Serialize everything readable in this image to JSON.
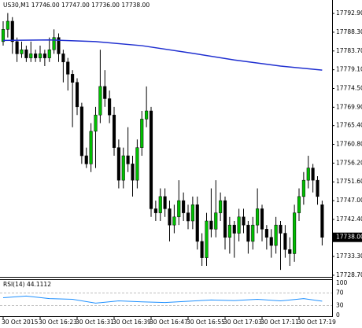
{
  "chart_data": [
    {
      "type": "candlestick",
      "title": "US30,M1 17746.00 17747.00 17736.00 17738.00",
      "price_label": "17738.00",
      "categories": [
        "30 Oct 2015",
        null,
        null,
        null,
        null,
        null,
        null,
        null,
        "30 Oct 16:23",
        null,
        null,
        null,
        null,
        null,
        null,
        null,
        "30 Oct 16:31",
        null,
        null,
        null,
        null,
        null,
        null,
        null,
        "30 Oct 16:39",
        null,
        null,
        null,
        null,
        null,
        null,
        null,
        "30 Oct 16:47",
        null,
        null,
        null,
        null,
        null,
        null,
        null,
        "30 Oct 16:55",
        null,
        null,
        null,
        null,
        null,
        null,
        null,
        "30 Oct 17:03",
        null,
        null,
        null,
        null,
        null,
        null,
        null,
        "30 Oct 17:11",
        null,
        null,
        null,
        null,
        null,
        null,
        null,
        "30 Oct 17:19",
        null,
        null,
        null,
        null,
        null
      ],
      "open": [
        17786,
        17789,
        17791,
        17786,
        17783,
        17784,
        17782,
        17783,
        17782,
        17783,
        17782,
        17784,
        17787,
        17783,
        17781,
        17778,
        17776,
        17770,
        17758,
        17756,
        17764,
        17768,
        17775,
        17772,
        17768,
        17760,
        17752,
        17758,
        17756,
        17752,
        17760,
        17767,
        17769,
        17745,
        17744,
        17748,
        17745,
        17741,
        17743,
        17747,
        17744,
        17742,
        17746,
        17737,
        17733,
        17742,
        17740,
        17744,
        17747,
        17738,
        17741,
        17739,
        17743,
        17741,
        17737,
        17741,
        17745,
        17740,
        17738,
        17736,
        17741,
        17739,
        17735,
        17734,
        17744,
        17748,
        17752,
        17755,
        17752,
        17746
      ],
      "high": [
        17791,
        17793,
        17792,
        17787,
        17786,
        17785,
        17786,
        17784,
        17785,
        17784,
        17787,
        17789,
        17788,
        17784,
        17782,
        17779,
        17777,
        17771,
        17760,
        17766,
        17770,
        17784,
        17779,
        17774,
        17770,
        17762,
        17760,
        17765,
        17758,
        17762,
        17769,
        17775,
        17770,
        17747,
        17750,
        17750,
        17747,
        17746,
        17752,
        17749,
        17746,
        17748,
        17748,
        17739,
        17744,
        17750,
        17752,
        17749,
        17748,
        17743,
        17742,
        17745,
        17745,
        17742,
        17743,
        17750,
        17746,
        17741,
        17740,
        17743,
        17742,
        17741,
        17738,
        17746,
        17750,
        17754,
        17758,
        17756,
        17753,
        17747
      ],
      "low": [
        17785,
        17787,
        17783,
        17781,
        17782,
        17781,
        17781,
        17781,
        17781,
        17780,
        17781,
        17783,
        17781,
        17776,
        17774,
        17765,
        17768,
        17756,
        17755,
        17754,
        17755,
        17766,
        17770,
        17766,
        17758,
        17750,
        17750,
        17754,
        17748,
        17750,
        17758,
        17765,
        17743,
        17742,
        17742,
        17743,
        17737,
        17739,
        17741,
        17742,
        17740,
        17740,
        17735,
        17731,
        17731,
        17738,
        17738,
        17742,
        17735,
        17734,
        17733,
        17737,
        17739,
        17734,
        17735,
        17739,
        17737,
        17735,
        17733,
        17734,
        17730,
        17733,
        17731,
        17732,
        17742,
        17746,
        17750,
        17749,
        17746,
        17736
      ],
      "close": [
        17789,
        17791,
        17786,
        17783,
        17784,
        17782,
        17783,
        17782,
        17783,
        17782,
        17784,
        17787,
        17783,
        17781,
        17778,
        17776,
        17770,
        17758,
        17756,
        17764,
        17768,
        17775,
        17772,
        17768,
        17760,
        17752,
        17758,
        17756,
        17752,
        17760,
        17767,
        17769,
        17745,
        17744,
        17748,
        17745,
        17741,
        17743,
        17747,
        17744,
        17742,
        17746,
        17737,
        17733,
        17742,
        17740,
        17744,
        17747,
        17738,
        17741,
        17739,
        17743,
        17741,
        17737,
        17741,
        17745,
        17740,
        17738,
        17736,
        17741,
        17739,
        17735,
        17734,
        17744,
        17748,
        17752,
        17755,
        17752,
        17748,
        17738
      ],
      "up_color": "#00c000",
      "down_color": "#000000",
      "ma": {
        "color": "#1f2fd0",
        "x": [
          0,
          10,
          20,
          30,
          40,
          50,
          60,
          69
        ],
        "values": [
          17786.3,
          17786.4,
          17786.0,
          17785.0,
          17783.3,
          17781.5,
          17780.0,
          17779.0
        ]
      },
      "ylim": [
        17728.3,
        17796.2
      ],
      "yticks": [
        {
          "value": 17792.9,
          "label": "17792.90"
        },
        {
          "value": 17788.3,
          "label": "17788.30"
        },
        {
          "value": 17783.7,
          "label": "17783.70"
        },
        {
          "value": 17779.1,
          "label": "17779.10"
        },
        {
          "value": 17774.5,
          "label": "17774.50"
        },
        {
          "value": 17769.9,
          "label": "17769.90"
        },
        {
          "value": 17765.4,
          "label": "17765.40"
        },
        {
          "value": 17760.8,
          "label": "17760.80"
        },
        {
          "value": 17756.2,
          "label": "17756.20"
        },
        {
          "value": 17751.6,
          "label": "17751.60"
        },
        {
          "value": 17747,
          "label": "17747.00"
        },
        {
          "value": 17742.4,
          "label": "17742.40"
        },
        {
          "value": 17733.3,
          "label": "17733.30"
        },
        {
          "value": 17728.7,
          "label": "17728.70"
        }
      ]
    },
    {
      "type": "line",
      "title": "RSI(14) 44.1112",
      "color": "#1e90ff",
      "x": [
        0,
        5,
        10,
        15,
        20,
        25,
        30,
        35,
        40,
        45,
        50,
        55,
        60,
        65,
        69
      ],
      "values": [
        55,
        60,
        52,
        50,
        38,
        45,
        42,
        40,
        44,
        48,
        46,
        50,
        45,
        52,
        44.1112
      ],
      "ylim": [
        0,
        100
      ],
      "yticks": [
        100,
        70,
        30,
        0
      ]
    }
  ]
}
